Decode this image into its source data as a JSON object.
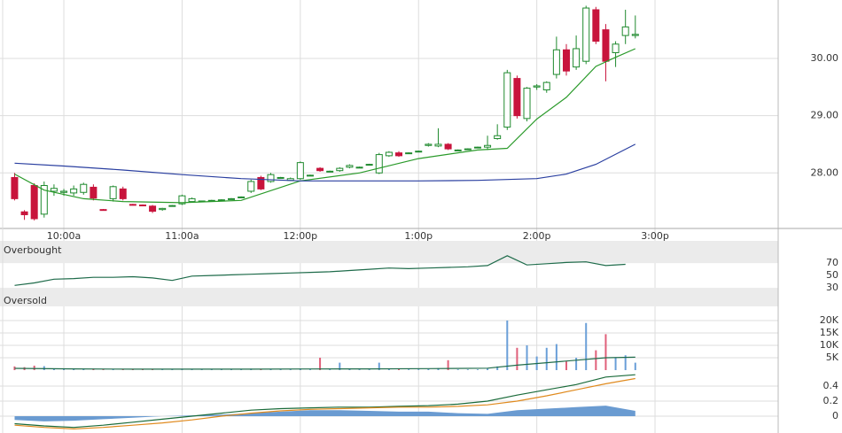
{
  "chart_data": [
    {
      "type": "candlestick",
      "x": [
        575,
        580,
        585,
        590,
        595,
        600,
        605,
        610,
        615,
        620,
        625,
        630,
        635,
        640,
        645,
        650,
        655,
        660,
        665,
        670,
        675,
        680,
        685,
        690,
        695,
        700,
        705,
        710,
        715,
        720,
        725,
        730,
        735,
        740,
        745,
        750,
        755,
        760,
        765,
        770,
        775,
        780,
        785,
        790,
        795,
        800,
        805,
        810,
        815,
        820,
        825,
        830,
        835,
        840,
        845,
        850,
        855,
        860,
        865,
        870,
        875,
        880,
        885,
        890
      ],
      "open": [
        27.92,
        27.32,
        27.78,
        27.28,
        27.68,
        27.66,
        27.65,
        27.66,
        27.75,
        27.36,
        27.55,
        27.72,
        27.45,
        27.44,
        27.42,
        27.36,
        27.43,
        27.46,
        27.5,
        27.5,
        27.52,
        27.53,
        27.55,
        27.58,
        27.68,
        27.92,
        27.85,
        27.92,
        27.87,
        27.9,
        27.96,
        28.08,
        28.03,
        28.04,
        28.1,
        28.1,
        28.15,
        28.0,
        28.3,
        28.35,
        28.35,
        28.38,
        28.48,
        28.47,
        28.5,
        28.4,
        28.42,
        28.45,
        28.45,
        28.6,
        28.8,
        29.65,
        28.95,
        29.5,
        29.45,
        29.72,
        30.15,
        29.85,
        29.95,
        30.85,
        30.5,
        30.1,
        30.4,
        30.4
      ],
      "high": [
        28.0,
        27.35,
        27.82,
        27.85,
        27.8,
        27.72,
        27.78,
        27.83,
        27.8,
        27.37,
        27.78,
        27.76,
        27.46,
        27.45,
        27.44,
        27.39,
        27.44,
        27.62,
        27.57,
        27.51,
        27.53,
        27.54,
        27.56,
        27.59,
        27.88,
        27.95,
        28.0,
        27.93,
        27.92,
        28.2,
        27.97,
        28.1,
        28.04,
        28.1,
        28.15,
        28.11,
        28.16,
        28.35,
        28.38,
        28.38,
        28.36,
        28.39,
        28.52,
        28.78,
        28.52,
        28.41,
        28.43,
        28.46,
        28.65,
        28.85,
        29.8,
        29.7,
        29.5,
        29.55,
        29.6,
        30.38,
        30.25,
        30.4,
        30.92,
        30.9,
        30.6,
        30.3,
        30.85,
        30.75
      ],
      "low": [
        27.52,
        27.18,
        27.17,
        27.22,
        27.6,
        27.6,
        27.6,
        27.62,
        27.52,
        27.34,
        27.5,
        27.52,
        27.43,
        27.42,
        27.3,
        27.34,
        27.42,
        27.44,
        27.48,
        27.49,
        27.51,
        27.52,
        27.54,
        27.57,
        27.65,
        27.7,
        27.83,
        27.91,
        27.86,
        27.88,
        27.95,
        28.02,
        28.02,
        28.02,
        28.08,
        28.09,
        28.14,
        27.98,
        28.28,
        28.28,
        28.34,
        28.37,
        28.46,
        28.45,
        28.4,
        28.39,
        28.41,
        28.44,
        28.4,
        28.58,
        28.75,
        28.95,
        28.9,
        29.45,
        29.4,
        29.65,
        29.7,
        29.8,
        29.9,
        30.25,
        29.6,
        29.85,
        30.25,
        30.35
      ],
      "close": [
        27.55,
        27.27,
        27.2,
        27.78,
        27.73,
        27.68,
        27.72,
        27.8,
        27.56,
        27.35,
        27.76,
        27.55,
        27.44,
        27.43,
        27.33,
        27.38,
        27.43,
        27.6,
        27.55,
        27.51,
        27.52,
        27.53,
        27.55,
        27.58,
        27.85,
        27.72,
        27.97,
        27.92,
        27.9,
        28.18,
        27.96,
        28.04,
        28.03,
        28.08,
        28.13,
        28.1,
        28.15,
        28.32,
        28.36,
        28.3,
        28.35,
        28.38,
        28.5,
        28.5,
        28.42,
        28.4,
        28.42,
        28.45,
        28.48,
        28.65,
        29.75,
        29.0,
        29.48,
        29.52,
        29.58,
        30.15,
        29.78,
        30.17,
        30.88,
        30.3,
        29.95,
        30.25,
        30.55,
        30.42
      ],
      "up_color": "#1f8a2e",
      "down_color": "#c8143c",
      "xlim": [
        567.6,
        962.5
      ],
      "xticks": [
        {
          "value": 600,
          "label": "10:00a"
        },
        {
          "value": 660,
          "label": "11:00a"
        },
        {
          "value": 720,
          "label": "12:00p"
        },
        {
          "value": 780,
          "label": "1:00p"
        },
        {
          "value": 840,
          "label": "2:00p"
        },
        {
          "value": 900,
          "label": "3:00p"
        }
      ],
      "ylim": [
        27.03,
        31.02
      ],
      "yticks": [
        {
          "value": 28,
          "label": "28.00"
        },
        {
          "value": 29,
          "label": "29.00"
        },
        {
          "value": 30,
          "label": "30.00"
        }
      ],
      "overlays": [
        {
          "color": "#2a9a2a",
          "x": [
            575,
            590,
            610,
            630,
            660,
            690,
            720,
            750,
            780,
            810,
            825,
            840,
            855,
            870,
            880,
            890
          ],
          "values": [
            27.98,
            27.7,
            27.55,
            27.5,
            27.48,
            27.52,
            27.86,
            28.0,
            28.25,
            28.4,
            28.43,
            28.94,
            29.32,
            29.86,
            30.02,
            30.17
          ]
        },
        {
          "color": "#2a3fa0",
          "x": [
            575,
            600,
            630,
            660,
            690,
            720,
            750,
            780,
            810,
            840,
            855,
            870,
            890
          ],
          "values": [
            28.17,
            28.12,
            28.05,
            27.97,
            27.9,
            27.86,
            27.86,
            27.86,
            27.87,
            27.9,
            27.98,
            28.15,
            28.5
          ]
        }
      ]
    },
    {
      "type": "line",
      "x": [
        575,
        585,
        595,
        605,
        615,
        625,
        635,
        645,
        655,
        665,
        675,
        685,
        695,
        705,
        715,
        725,
        735,
        745,
        755,
        765,
        775,
        785,
        795,
        805,
        815,
        825,
        835,
        845,
        855,
        865,
        875,
        885
      ],
      "values": [
        34,
        38,
        44,
        45,
        47,
        47,
        48,
        46,
        42,
        49,
        50,
        51,
        52,
        53,
        54,
        55,
        56,
        58,
        60,
        62,
        61,
        62,
        63,
        64,
        66,
        82,
        67,
        69,
        71,
        72,
        66,
        68
      ],
      "color": "#1e6b4a",
      "ylim": [
        0,
        106
      ],
      "yticks": [
        30,
        50,
        70
      ],
      "bands": [
        {
          "label": "Overbought",
          "range": [
            70,
            106
          ]
        },
        {
          "label": "Oversold",
          "range": [
            0,
            30
          ]
        }
      ],
      "band_color": "#ebebeb"
    },
    {
      "type": "bar",
      "x": [
        575,
        580,
        585,
        590,
        595,
        600,
        605,
        610,
        615,
        620,
        625,
        630,
        635,
        640,
        645,
        650,
        655,
        660,
        665,
        670,
        675,
        680,
        685,
        690,
        695,
        700,
        705,
        710,
        715,
        720,
        725,
        730,
        735,
        740,
        745,
        750,
        755,
        760,
        765,
        770,
        775,
        780,
        785,
        790,
        795,
        800,
        805,
        810,
        815,
        820,
        825,
        830,
        835,
        840,
        845,
        850,
        855,
        860,
        865,
        870,
        875,
        880,
        885,
        890
      ],
      "values": [
        1500,
        1200,
        1800,
        1600,
        600,
        500,
        400,
        500,
        600,
        300,
        500,
        400,
        300,
        300,
        400,
        300,
        300,
        500,
        400,
        300,
        300,
        300,
        300,
        300,
        600,
        500,
        400,
        300,
        300,
        600,
        300,
        5000,
        300,
        3000,
        500,
        300,
        300,
        3000,
        500,
        400,
        300,
        300,
        400,
        800,
        4000,
        300,
        300,
        300,
        600,
        1500,
        20000,
        9000,
        10000,
        5500,
        9000,
        10500,
        3500,
        5000,
        19000,
        8000,
        14500,
        5000,
        6000,
        3000
      ],
      "up_color": "#6a9fd8",
      "down_color": "#e0607a",
      "ylim": [
        0,
        25700
      ],
      "yticks": [
        {
          "value": 5000,
          "label": "5K"
        },
        {
          "value": 10000,
          "label": "10K"
        },
        {
          "value": 15000,
          "label": "15K"
        },
        {
          "value": 20000,
          "label": "20K"
        }
      ],
      "overlay": {
        "color": "#1e6b4a",
        "x": [
          575,
          605,
          635,
          665,
          695,
          725,
          755,
          785,
          815,
          830,
          845,
          860,
          875,
          890
        ],
        "values": [
          700,
          500,
          400,
          400,
          400,
          450,
          500,
          600,
          800,
          2000,
          3000,
          4000,
          5000,
          5200
        ]
      }
    },
    {
      "type": "area",
      "x": [
        575,
        590,
        605,
        620,
        635,
        650,
        665,
        680,
        695,
        710,
        725,
        740,
        755,
        770,
        785,
        800,
        815,
        830,
        845,
        860,
        875,
        890
      ],
      "values": [
        -0.05,
        -0.07,
        -0.06,
        -0.04,
        -0.02,
        0,
        0.01,
        0.02,
        0.04,
        0.06,
        0.08,
        0.08,
        0.07,
        0.06,
        0.06,
        0.04,
        0.03,
        0.08,
        0.1,
        0.12,
        0.14,
        0.07
      ],
      "color": "#6a9bd1",
      "series": [
        {
          "color": "#1a6b3a",
          "values": [
            -0.1,
            -0.13,
            -0.15,
            -0.12,
            -0.08,
            -0.04,
            0,
            0.04,
            0.08,
            0.1,
            0.11,
            0.12,
            0.12,
            0.13,
            0.14,
            0.16,
            0.2,
            0.28,
            0.35,
            0.42,
            0.52,
            0.55
          ]
        },
        {
          "color": "#e08a1e",
          "values": [
            -0.12,
            -0.15,
            -0.17,
            -0.15,
            -0.12,
            -0.09,
            -0.05,
            0,
            0.04,
            0.07,
            0.09,
            0.1,
            0.11,
            0.12,
            0.12,
            0.13,
            0.15,
            0.2,
            0.27,
            0.35,
            0.43,
            0.5
          ]
        }
      ],
      "ylim": [
        -0.224,
        0.588
      ],
      "yticks": [
        0,
        0.2,
        0.4
      ]
    }
  ]
}
